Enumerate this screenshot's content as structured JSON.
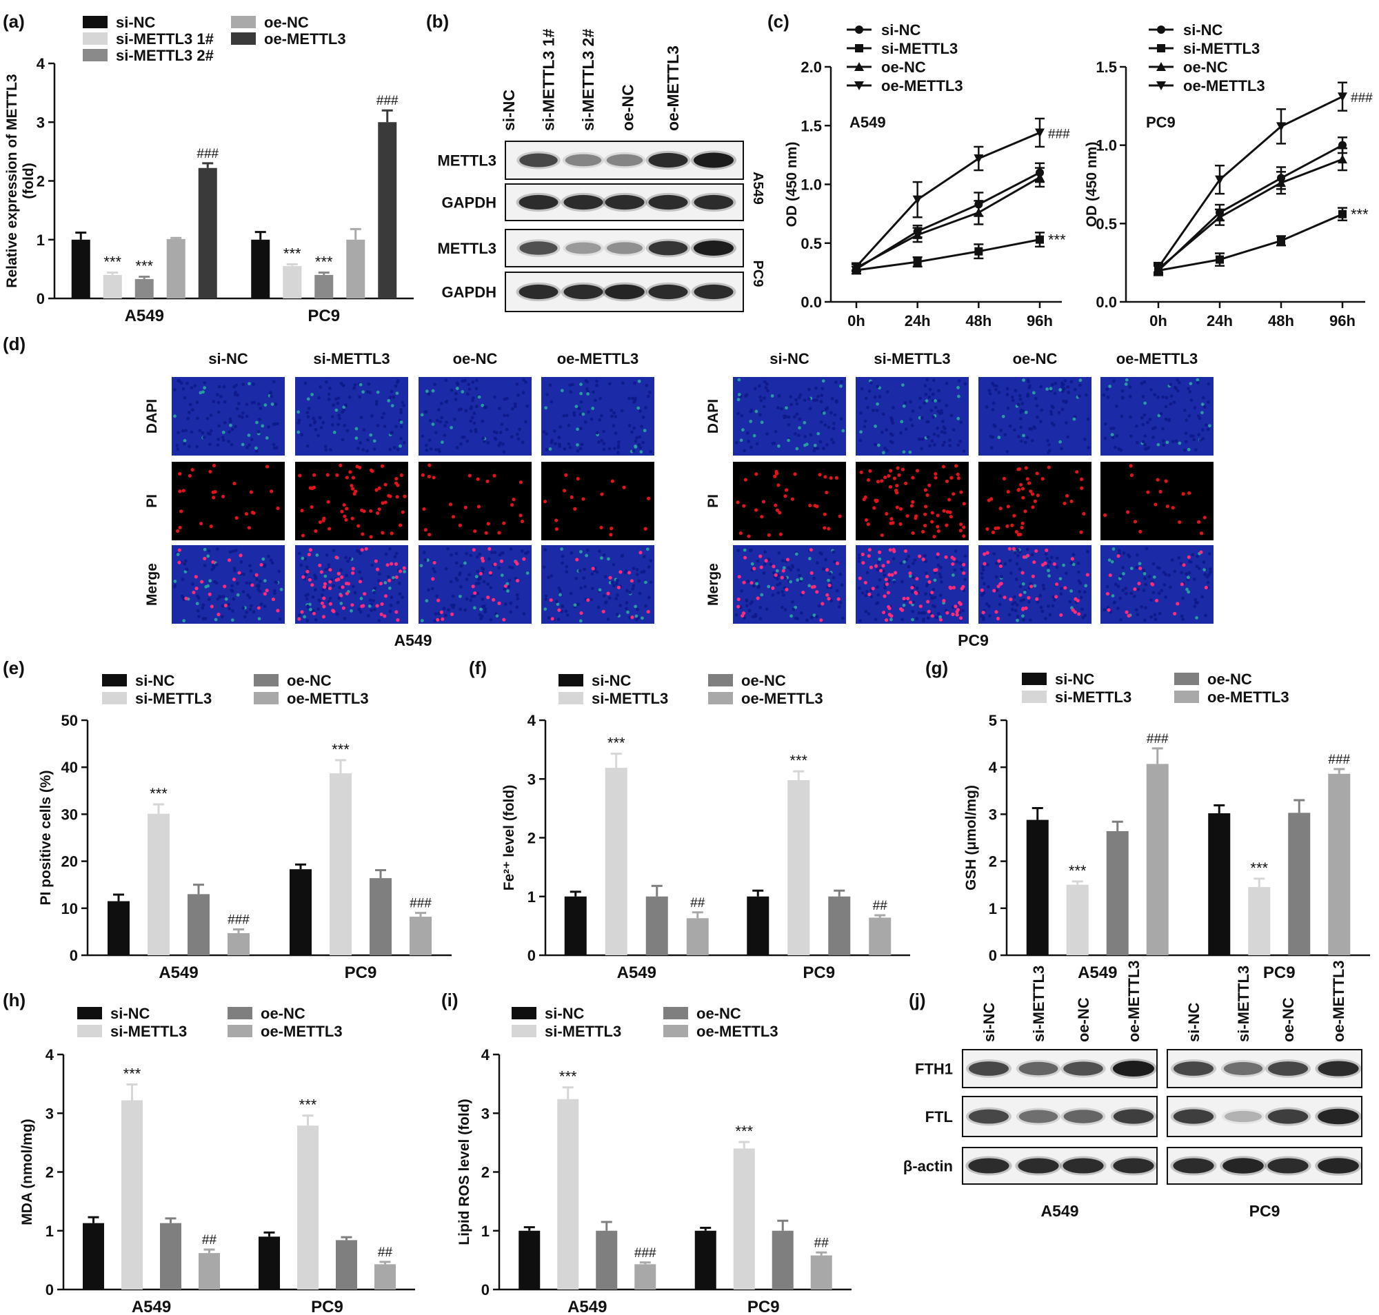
{
  "colors": {
    "si_NC": "#0f0f0f",
    "si_METTL3": "#d6d6d6",
    "si_METTL3_2": "#8a8a8a",
    "oe_NC": "#7f7f7f",
    "oe_METTL3": "#a8a8a8",
    "oe_METTL3_dark": "#3a3a3a",
    "oe_NC_light": "#a9a9a9",
    "dapi": "#1b2aa6",
    "pi": "#e0141c",
    "blot": "#1c1c1c"
  },
  "panel_labels": [
    "(a)",
    "(b)",
    "(c)",
    "(d)",
    "(e)",
    "(f)",
    "(g)",
    "(h)",
    "(i)",
    "(j)"
  ],
  "chart_data": [
    {
      "id": "a",
      "type": "bar",
      "ylabel": "Relative expression of METTL3\n(fold)",
      "ylim": [
        0,
        4
      ],
      "yticks": [
        0,
        1,
        2,
        3,
        4
      ],
      "categories": [
        "A549",
        "PC9"
      ],
      "legend_cols": [
        [
          "si-NC",
          "si-METTL3 1#",
          "si-METTL3 2#"
        ],
        [
          "oe-NC",
          "oe-METTL3"
        ]
      ],
      "series": [
        {
          "name": "si-NC",
          "color": "#0f0f0f",
          "values": [
            1.0,
            1.0
          ],
          "err": [
            0.12,
            0.13
          ],
          "ann": [
            "",
            ""
          ]
        },
        {
          "name": "si-METTL3 1#",
          "color": "#d6d6d6",
          "values": [
            0.4,
            0.55
          ],
          "err": [
            0.04,
            0.03
          ],
          "ann": [
            "***",
            "***"
          ]
        },
        {
          "name": "si-METTL3 2#",
          "color": "#8a8a8a",
          "values": [
            0.33,
            0.4
          ],
          "err": [
            0.04,
            0.04
          ],
          "ann": [
            "***",
            "***"
          ]
        },
        {
          "name": "oe-NC",
          "color": "#a9a9a9",
          "values": [
            1.01,
            1.0
          ],
          "err": [
            0.02,
            0.18
          ],
          "ann": [
            "",
            ""
          ]
        },
        {
          "name": "oe-METTL3",
          "color": "#3a3a3a",
          "values": [
            2.22,
            3.0
          ],
          "err": [
            0.08,
            0.2
          ],
          "ann": [
            "###",
            "###"
          ]
        }
      ]
    },
    {
      "id": "c1",
      "type": "line",
      "ylabel": "OD (450 nm)",
      "inset_label": "A549",
      "x": [
        "0h",
        "24h",
        "48h",
        "96h"
      ],
      "ylim": [
        0,
        2.0
      ],
      "yticks": [
        "0.0",
        "0.5",
        "1.0",
        "1.5",
        "2.0"
      ],
      "series": [
        {
          "name": "si-NC",
          "marker": "circle",
          "values": [
            0.28,
            0.6,
            0.83,
            1.1
          ],
          "err": [
            0.04,
            0.05,
            0.1,
            0.08
          ],
          "ann": ""
        },
        {
          "name": "si-METTL3",
          "marker": "square",
          "values": [
            0.27,
            0.34,
            0.43,
            0.53
          ],
          "err": [
            0.03,
            0.04,
            0.06,
            0.06
          ],
          "ann": "***"
        },
        {
          "name": "oe-NC",
          "marker": "triangle-up",
          "values": [
            0.29,
            0.57,
            0.76,
            1.06
          ],
          "err": [
            0.03,
            0.06,
            0.1,
            0.08
          ],
          "ann": ""
        },
        {
          "name": "oe-METTL3",
          "marker": "triangle-down",
          "values": [
            0.3,
            0.87,
            1.22,
            1.44
          ],
          "err": [
            0.03,
            0.15,
            0.1,
            0.12
          ],
          "ann": "###"
        }
      ]
    },
    {
      "id": "c2",
      "type": "line",
      "ylabel": "OD (450 nm)",
      "inset_label": "PC9",
      "x": [
        "0h",
        "24h",
        "48h",
        "96h"
      ],
      "ylim": [
        0,
        1.5
      ],
      "yticks": [
        "0.0",
        "0.5",
        "1.0",
        "1.5"
      ],
      "series": [
        {
          "name": "si-NC",
          "marker": "circle",
          "values": [
            0.2,
            0.57,
            0.79,
            1.0
          ],
          "err": [
            0.03,
            0.05,
            0.07,
            0.05
          ],
          "ann": ""
        },
        {
          "name": "si-METTL3",
          "marker": "square",
          "values": [
            0.2,
            0.27,
            0.39,
            0.56
          ],
          "err": [
            0.03,
            0.04,
            0.03,
            0.04
          ],
          "ann": "***"
        },
        {
          "name": "oe-NC",
          "marker": "triangle-up",
          "values": [
            0.21,
            0.54,
            0.76,
            0.91
          ],
          "err": [
            0.03,
            0.05,
            0.07,
            0.07
          ],
          "ann": ""
        },
        {
          "name": "oe-METTL3",
          "marker": "triangle-down",
          "values": [
            0.22,
            0.78,
            1.12,
            1.31
          ],
          "err": [
            0.03,
            0.09,
            0.11,
            0.09
          ],
          "ann": "###"
        }
      ]
    },
    {
      "id": "e",
      "type": "bar",
      "ylabel": "PI positive cells (%)",
      "ylim": [
        0,
        50
      ],
      "yticks": [
        0,
        10,
        20,
        30,
        40,
        50
      ],
      "categories": [
        "A549",
        "PC9"
      ],
      "legend_cols": [
        [
          "si-NC",
          "si-METTL3"
        ],
        [
          "oe-NC",
          "oe-METTL3"
        ]
      ],
      "series": [
        {
          "name": "si-NC",
          "color": "#0f0f0f",
          "values": [
            11.5,
            18.3
          ],
          "err": [
            1.4,
            1.0
          ],
          "ann": [
            "",
            ""
          ]
        },
        {
          "name": "si-METTL3",
          "color": "#d6d6d6",
          "values": [
            30.1,
            38.7
          ],
          "err": [
            2.0,
            2.8
          ],
          "ann": [
            "***",
            "***"
          ]
        },
        {
          "name": "oe-NC",
          "color": "#7f7f7f",
          "values": [
            13.0,
            16.4
          ],
          "err": [
            2.0,
            1.7
          ],
          "ann": [
            "",
            ""
          ]
        },
        {
          "name": "oe-METTL3",
          "color": "#a8a8a8",
          "values": [
            4.7,
            8.2
          ],
          "err": [
            0.8,
            0.8
          ],
          "ann": [
            "###",
            "###"
          ]
        }
      ]
    },
    {
      "id": "f",
      "type": "bar",
      "ylabel": "Fe²⁺ level (fold)",
      "ylim": [
        0,
        4
      ],
      "yticks": [
        0,
        1,
        2,
        3,
        4
      ],
      "categories": [
        "A549",
        "PC9"
      ],
      "legend_cols": [
        [
          "si-NC",
          "si-METTL3"
        ],
        [
          "oe-NC",
          "oe-METTL3"
        ]
      ],
      "series": [
        {
          "name": "si-NC",
          "color": "#0f0f0f",
          "values": [
            1.0,
            1.0
          ],
          "err": [
            0.08,
            0.1
          ],
          "ann": [
            "",
            ""
          ]
        },
        {
          "name": "si-METTL3",
          "color": "#d6d6d6",
          "values": [
            3.19,
            2.98
          ],
          "err": [
            0.24,
            0.15
          ],
          "ann": [
            "***",
            "***"
          ]
        },
        {
          "name": "oe-NC",
          "color": "#7f7f7f",
          "values": [
            1.0,
            1.0
          ],
          "err": [
            0.18,
            0.1
          ],
          "ann": [
            "",
            ""
          ]
        },
        {
          "name": "oe-METTL3",
          "color": "#a8a8a8",
          "values": [
            0.63,
            0.64
          ],
          "err": [
            0.1,
            0.04
          ],
          "ann": [
            "##",
            "##"
          ]
        }
      ]
    },
    {
      "id": "g",
      "type": "bar",
      "ylabel": "GSH (μmol/mg)",
      "ylim": [
        0,
        5
      ],
      "yticks": [
        0,
        1,
        2,
        3,
        4,
        5
      ],
      "categories": [
        "A549",
        "PC9"
      ],
      "legend_cols": [
        [
          "si-NC",
          "si-METTL3"
        ],
        [
          "oe-NC",
          "oe-METTL3"
        ]
      ],
      "series": [
        {
          "name": "si-NC",
          "color": "#0f0f0f",
          "values": [
            2.88,
            3.02
          ],
          "err": [
            0.25,
            0.17
          ],
          "ann": [
            "",
            ""
          ]
        },
        {
          "name": "si-METTL3",
          "color": "#d6d6d6",
          "values": [
            1.5,
            1.45
          ],
          "err": [
            0.07,
            0.18
          ],
          "ann": [
            "***",
            "***"
          ]
        },
        {
          "name": "oe-NC",
          "color": "#7f7f7f",
          "values": [
            2.64,
            3.03
          ],
          "err": [
            0.2,
            0.27
          ],
          "ann": [
            "",
            ""
          ]
        },
        {
          "name": "oe-METTL3",
          "color": "#a8a8a8",
          "values": [
            4.07,
            3.86
          ],
          "err": [
            0.33,
            0.1
          ],
          "ann": [
            "###",
            "###"
          ]
        }
      ]
    },
    {
      "id": "h",
      "type": "bar",
      "ylabel": "MDA (nmol/mg)",
      "ylim": [
        0,
        4
      ],
      "yticks": [
        0,
        1,
        2,
        3,
        4
      ],
      "categories": [
        "A549",
        "PC9"
      ],
      "legend_cols": [
        [
          "si-NC",
          "si-METTL3"
        ],
        [
          "oe-NC",
          "oe-METTL3"
        ]
      ],
      "series": [
        {
          "name": "si-NC",
          "color": "#0f0f0f",
          "values": [
            1.13,
            0.9
          ],
          "err": [
            0.1,
            0.07
          ],
          "ann": [
            "",
            ""
          ]
        },
        {
          "name": "si-METTL3",
          "color": "#d6d6d6",
          "values": [
            3.22,
            2.79
          ],
          "err": [
            0.27,
            0.17
          ],
          "ann": [
            "***",
            "***"
          ]
        },
        {
          "name": "oe-NC",
          "color": "#7f7f7f",
          "values": [
            1.13,
            0.84
          ],
          "err": [
            0.08,
            0.05
          ],
          "ann": [
            "",
            ""
          ]
        },
        {
          "name": "oe-METTL3",
          "color": "#a8a8a8",
          "values": [
            0.62,
            0.43
          ],
          "err": [
            0.06,
            0.04
          ],
          "ann": [
            "##",
            "##"
          ]
        }
      ]
    },
    {
      "id": "i",
      "type": "bar",
      "ylabel": "Lipid ROS level (fold)",
      "ylim": [
        0,
        4
      ],
      "yticks": [
        0,
        1,
        2,
        3,
        4
      ],
      "categories": [
        "A549",
        "PC9"
      ],
      "legend_cols": [
        [
          "si-NC",
          "si-METTL3"
        ],
        [
          "oe-NC",
          "oe-METTL3"
        ]
      ],
      "series": [
        {
          "name": "si-NC",
          "color": "#0f0f0f",
          "values": [
            1.0,
            1.0
          ],
          "err": [
            0.06,
            0.05
          ],
          "ann": [
            "",
            ""
          ]
        },
        {
          "name": "si-METTL3",
          "color": "#d6d6d6",
          "values": [
            3.24,
            2.4
          ],
          "err": [
            0.2,
            0.11
          ],
          "ann": [
            "***",
            "***"
          ]
        },
        {
          "name": "oe-NC",
          "color": "#7f7f7f",
          "values": [
            1.0,
            1.0
          ],
          "err": [
            0.15,
            0.17
          ],
          "ann": [
            "",
            ""
          ]
        },
        {
          "name": "oe-METTL3",
          "color": "#a8a8a8",
          "values": [
            0.43,
            0.58
          ],
          "err": [
            0.03,
            0.05
          ],
          "ann": [
            "###",
            "##"
          ]
        }
      ]
    }
  ],
  "blot_b": {
    "lanes": [
      "si-NC",
      "si-METTL3 1#",
      "si-METTL3 2#",
      "oe-NC",
      "oe-METTL3"
    ],
    "rows": [
      {
        "label": "METTL3",
        "group": "A549",
        "intensities": [
          0.75,
          0.45,
          0.45,
          0.9,
          1.0
        ]
      },
      {
        "label": "GAPDH",
        "group": "A549",
        "intensities": [
          0.9,
          0.9,
          0.9,
          0.9,
          0.9
        ]
      },
      {
        "label": "METTL3",
        "group": "PC9",
        "intensities": [
          0.7,
          0.35,
          0.4,
          0.85,
          1.0
        ]
      },
      {
        "label": "GAPDH",
        "group": "PC9",
        "intensities": [
          0.9,
          0.9,
          0.95,
          0.9,
          0.9
        ]
      }
    ],
    "groups": [
      "A549",
      "PC9"
    ]
  },
  "panel_d": {
    "groups": [
      {
        "name": "A549",
        "cols": [
          "si-NC",
          "si-METTL3",
          "oe-NC",
          "oe-METTL3"
        ],
        "pi_density": [
          0.35,
          0.8,
          0.35,
          0.22
        ]
      },
      {
        "name": "PC9",
        "cols": [
          "si-NC",
          "si-METTL3",
          "oe-NC",
          "oe-METTL3"
        ],
        "pi_density": [
          0.45,
          1.0,
          0.6,
          0.25
        ]
      }
    ],
    "rows": [
      "DAPI",
      "PI",
      "Merge"
    ]
  },
  "blot_j": {
    "lanes": [
      "si-NC",
      "si-METTL3",
      "oe-NC",
      "oe-METTL3"
    ],
    "rows": [
      "FTH1",
      "FTL",
      "β-actin"
    ],
    "groups": [
      {
        "name": "A549",
        "intensities": [
          [
            0.75,
            0.6,
            0.7,
            1.0
          ],
          [
            0.75,
            0.55,
            0.6,
            0.8
          ],
          [
            0.9,
            0.9,
            0.9,
            0.9
          ]
        ]
      },
      {
        "name": "PC9",
        "intensities": [
          [
            0.75,
            0.55,
            0.75,
            0.9
          ],
          [
            0.8,
            0.25,
            0.8,
            0.95
          ],
          [
            0.9,
            0.95,
            0.9,
            0.95
          ]
        ]
      }
    ]
  }
}
